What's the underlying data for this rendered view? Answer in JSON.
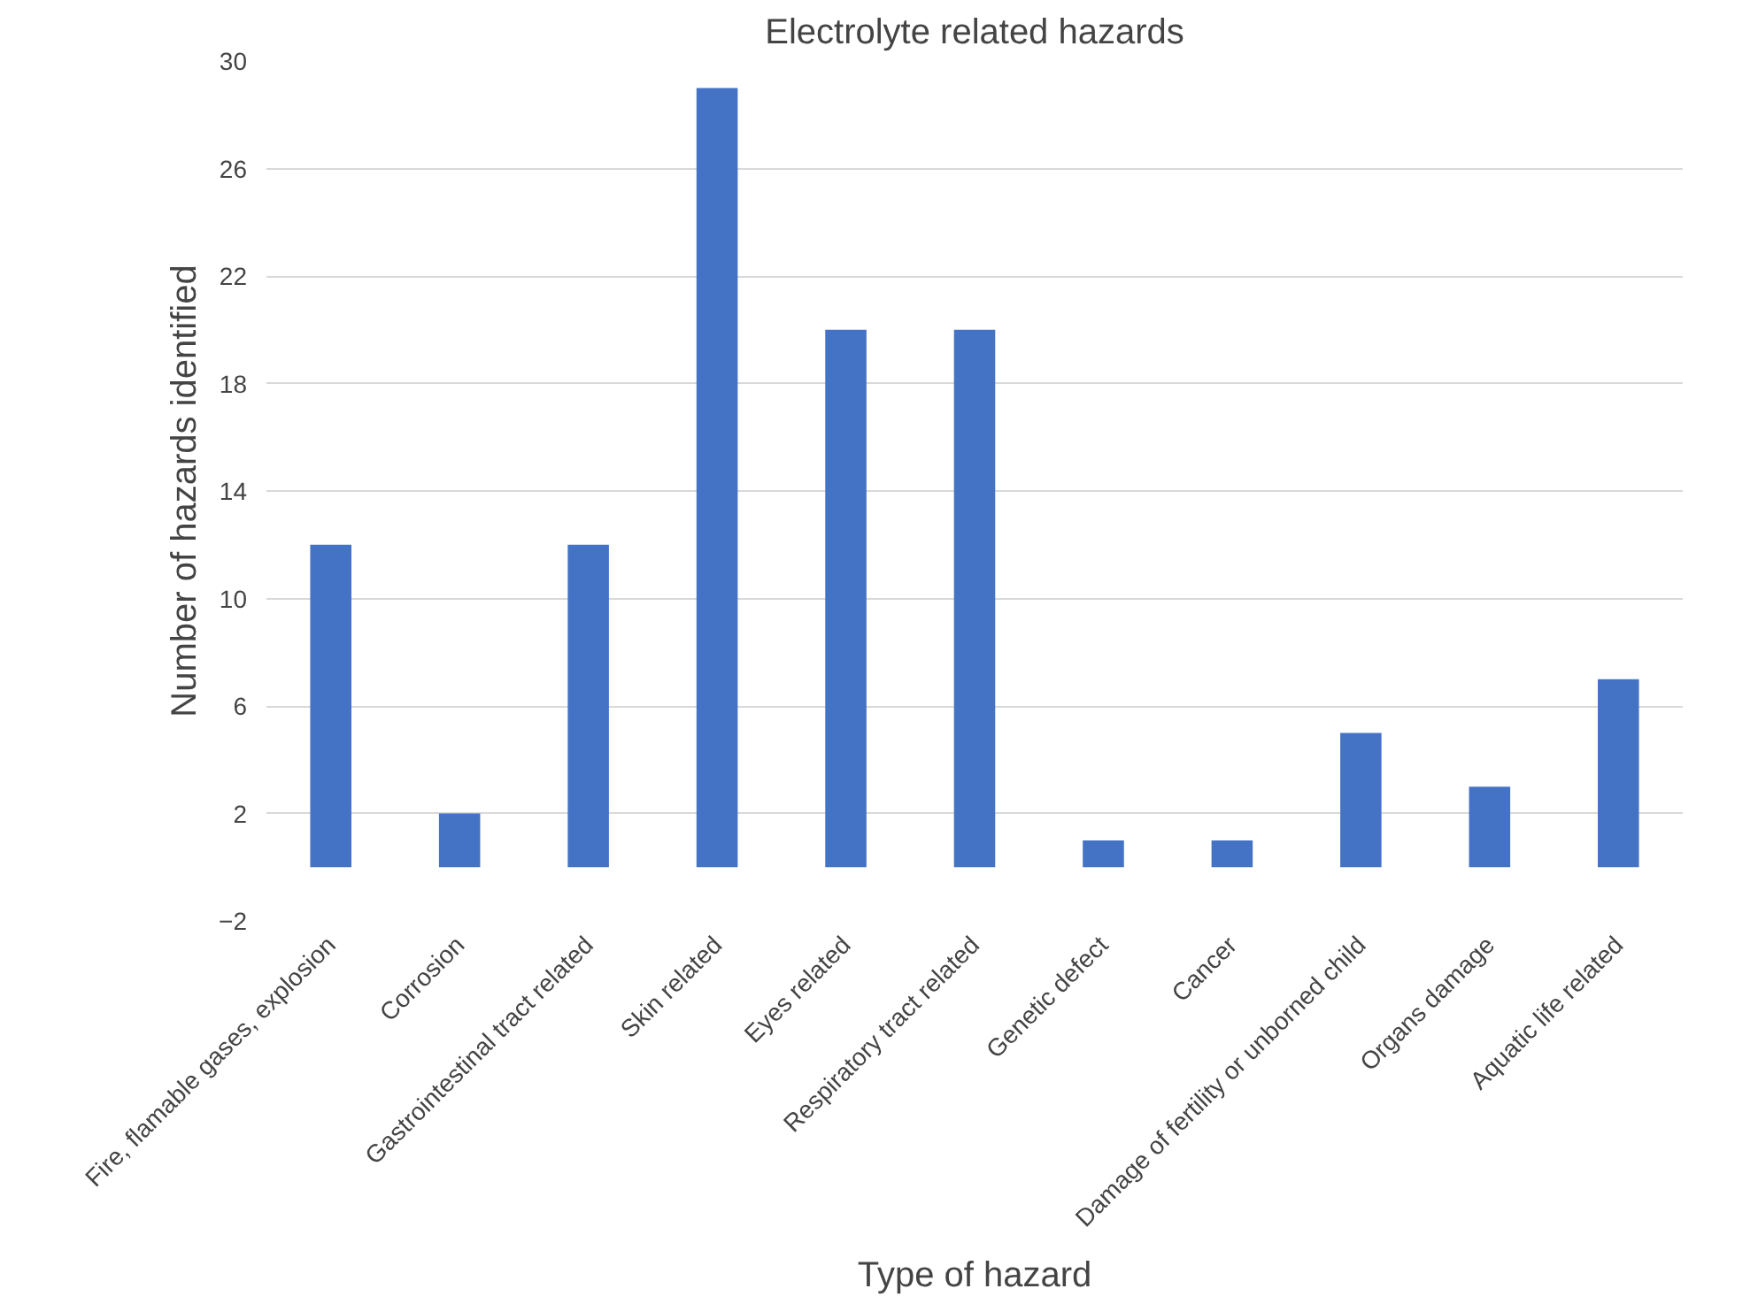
{
  "chart_data": {
    "type": "bar",
    "title": "Electrolyte related hazards",
    "xlabel": "Type of hazard",
    "ylabel": "Number of hazards identified",
    "categories": [
      "Fire, flamable gases, explosion",
      "Corrosion",
      "Gastrointestinal tract related",
      "Skin related",
      "Eyes related",
      "Respiratory tract related",
      "Genetic defect",
      "Cancer",
      "Damage of fertility or unborned child",
      "Organs damage",
      "Aquatic life related"
    ],
    "values": [
      12,
      2,
      12,
      29,
      20,
      20,
      1,
      1,
      5,
      3,
      7
    ],
    "color": "#4472c4",
    "ylim": [
      -2,
      30
    ],
    "yticks": [
      -2,
      2,
      6,
      10,
      14,
      18,
      22,
      26,
      30
    ],
    "grid": "y"
  }
}
